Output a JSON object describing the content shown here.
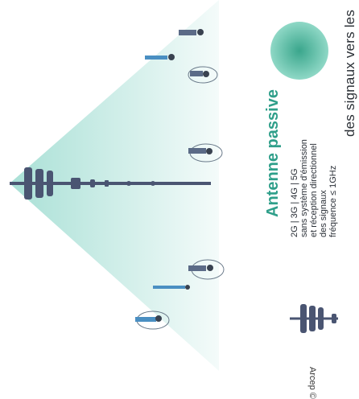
{
  "caption": "des signaux vers les",
  "legend": {
    "title": "Antenne passive",
    "lines": [
      "2G | 3G | 4G | 5G",
      "sans système d'émission",
      "et réception directionnel",
      "des signaux",
      "fréquence ≤ 1GHz"
    ]
  },
  "copyright": "Arcep ©",
  "colors": {
    "beam_start": "#a9e0d6",
    "beam_end": "#f4fbfa",
    "accent": "#2f9f8a",
    "mast": "#4a5572",
    "circle": "#5ebfa7"
  },
  "icons": [
    "antenna-mast-icon",
    "antenna-legend-icon",
    "signal-circle-icon",
    "person-icon"
  ]
}
